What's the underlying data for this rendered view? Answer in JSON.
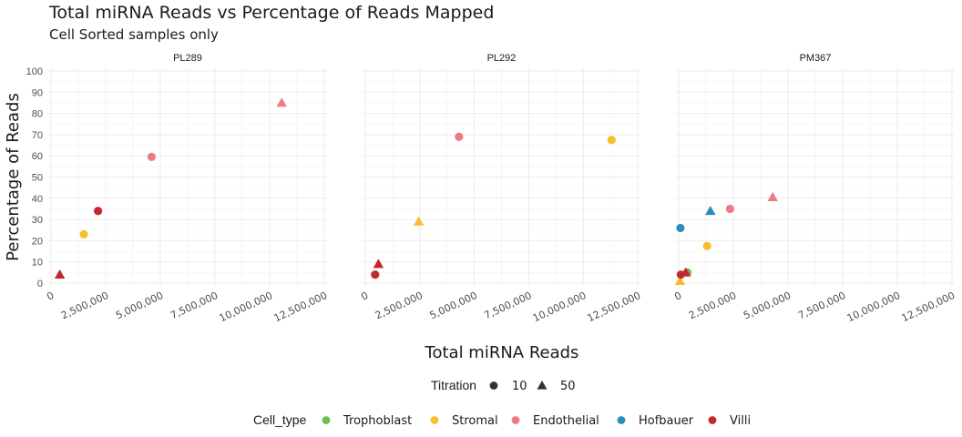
{
  "chart_data": {
    "type": "scatter",
    "title": "Total miRNA Reads vs Percentage of Reads Mapped",
    "subtitle": "Cell Sorted samples only",
    "xlabel": "Total miRNA Reads",
    "ylabel": "Percentage of Reads",
    "xlim": [
      0,
      12500000
    ],
    "ylim": [
      0,
      100
    ],
    "x_ticks": [
      "0",
      "2,500,000",
      "5,000,000",
      "7,500,000",
      "10,000,000",
      "12,500,000"
    ],
    "y_ticks": [
      "0",
      "10",
      "20",
      "30",
      "40",
      "50",
      "60",
      "70",
      "80",
      "90",
      "100"
    ],
    "grid": true,
    "facets": [
      "PL289",
      "PL292",
      "PM367"
    ],
    "legend": {
      "position": "bottom",
      "titration_title": "Titration",
      "titration_items": [
        {
          "label": "10",
          "shape": "circle"
        },
        {
          "label": "50",
          "shape": "triangle"
        }
      ],
      "cell_type_title": "Cell_type",
      "cell_type_items": [
        {
          "label": "Trophoblast",
          "color": "#6abf55"
        },
        {
          "label": "Stromal",
          "color": "#f9bd2f"
        },
        {
          "label": "Endothelial",
          "color": "#f07a84"
        },
        {
          "label": "Hofbauer",
          "color": "#2a8cbf"
        },
        {
          "label": "Villi",
          "color": "#c3282c"
        }
      ]
    },
    "points": [
      {
        "facet": "PL289",
        "x": 400000,
        "y": 4,
        "cell_type": "Villi",
        "titration": "50"
      },
      {
        "facet": "PL289",
        "x": 1500000,
        "y": 23,
        "cell_type": "Stromal",
        "titration": "10"
      },
      {
        "facet": "PL289",
        "x": 2150000,
        "y": 34,
        "cell_type": "Villi",
        "titration": "10"
      },
      {
        "facet": "PL289",
        "x": 4600000,
        "y": 59.5,
        "cell_type": "Endothelial",
        "titration": "10"
      },
      {
        "facet": "PL289",
        "x": 10550000,
        "y": 85,
        "cell_type": "Endothelial",
        "titration": "50"
      },
      {
        "facet": "PL292",
        "x": 450000,
        "y": 4,
        "cell_type": "Villi",
        "titration": "10"
      },
      {
        "facet": "PL292",
        "x": 600000,
        "y": 9,
        "cell_type": "Villi",
        "titration": "50"
      },
      {
        "facet": "PL292",
        "x": 2450000,
        "y": 29,
        "cell_type": "Stromal",
        "titration": "50"
      },
      {
        "facet": "PL292",
        "x": 4300000,
        "y": 69,
        "cell_type": "Endothelial",
        "titration": "10"
      },
      {
        "facet": "PL292",
        "x": 11300000,
        "y": 67.5,
        "cell_type": "Stromal",
        "titration": "10"
      },
      {
        "facet": "PM367",
        "x": 60000,
        "y": 1,
        "cell_type": "Stromal",
        "titration": "50"
      },
      {
        "facet": "PM367",
        "x": 100000,
        "y": 4,
        "cell_type": "Villi",
        "titration": "10"
      },
      {
        "facet": "PM367",
        "x": 400000,
        "y": 5,
        "cell_type": "Trophoblast",
        "titration": "10"
      },
      {
        "facet": "PM367",
        "x": 320000,
        "y": 5,
        "cell_type": "Villi",
        "titration": "50"
      },
      {
        "facet": "PM367",
        "x": 80000,
        "y": 26,
        "cell_type": "Hofbauer",
        "titration": "10"
      },
      {
        "facet": "PM367",
        "x": 1300000,
        "y": 17.5,
        "cell_type": "Stromal",
        "titration": "10"
      },
      {
        "facet": "PM367",
        "x": 1450000,
        "y": 34,
        "cell_type": "Hofbauer",
        "titration": "50"
      },
      {
        "facet": "PM367",
        "x": 2350000,
        "y": 35,
        "cell_type": "Endothelial",
        "titration": "10"
      },
      {
        "facet": "PM367",
        "x": 4300000,
        "y": 40.5,
        "cell_type": "Endothelial",
        "titration": "50"
      }
    ]
  }
}
